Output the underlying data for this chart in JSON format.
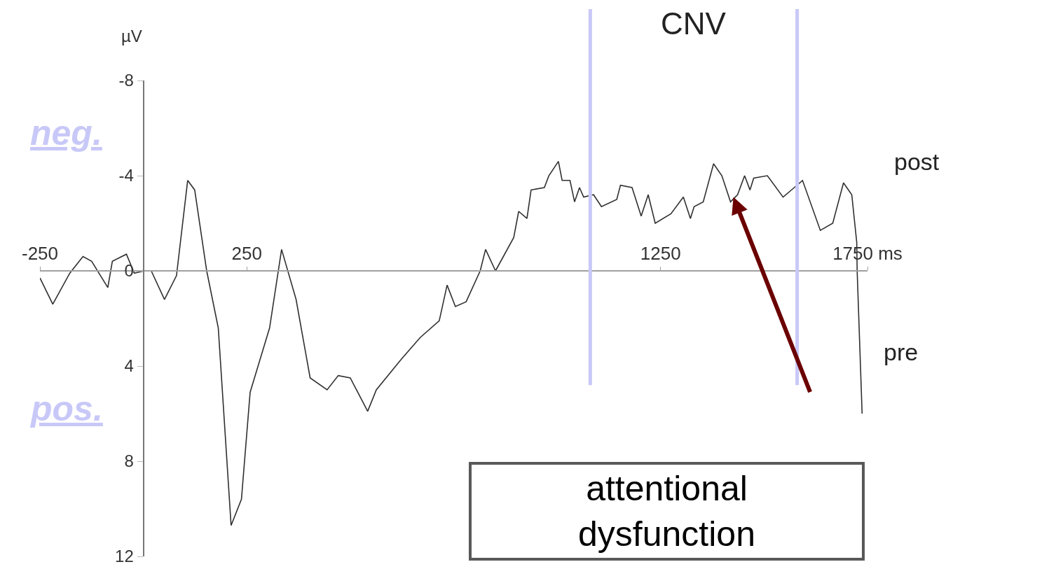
{
  "chart_data": {
    "type": "line",
    "ylabel": "µV",
    "x": [
      -250,
      -219,
      -178,
      -146,
      -125,
      -86,
      -75,
      -41,
      -22,
      2,
      19,
      51,
      80,
      107,
      124,
      153,
      181,
      212,
      237,
      258,
      305,
      334,
      369,
      403,
      444,
      471,
      500,
      542,
      563,
      624,
      669,
      715,
      734,
      754,
      780,
      814,
      827,
      851,
      895,
      907,
      927,
      937,
      969,
      980,
      1003,
      1012,
      1031,
      1042,
      1054,
      1064,
      1088,
      1107,
      1144,
      1153,
      1181,
      1203,
      1220,
      1237,
      1275,
      1305,
      1322,
      1331,
      1353,
      1378,
      1398,
      1419,
      1436,
      1453,
      1466,
      1475,
      1508,
      1546,
      1573,
      1593,
      1636,
      1666,
      1692,
      1712,
      1724,
      1725,
      1737
    ],
    "series": [
      {
        "color": "#303030",
        "values": [
          0.3,
          1.4,
          0.1,
          -0.6,
          -0.4,
          0.7,
          -0.4,
          -0.7,
          0.1,
          0,
          0,
          1.2,
          0.2,
          -3.8,
          -3.4,
          0,
          2.4,
          10.7,
          9.6,
          5.1,
          2.4,
          -0.9,
          1.2,
          4.5,
          5.0,
          4.4,
          4.5,
          5.9,
          5.0,
          3.7,
          2.8,
          2.1,
          0.6,
          1.5,
          1.3,
          0,
          -0.9,
          0,
          -1.4,
          -2.5,
          -2.2,
          -3.4,
          -3.5,
          -4.0,
          -4.6,
          -3.8,
          -3.8,
          -2.9,
          -3.5,
          -3.1,
          -3.2,
          -2.7,
          -3.0,
          -3.6,
          -3.5,
          -2.3,
          -3.2,
          -2.0,
          -2.4,
          -3.1,
          -2.2,
          -2.7,
          -2.9,
          -4.5,
          -4.0,
          -2.9,
          -3.2,
          -4.0,
          -3.4,
          -3.9,
          -4.0,
          -3.1,
          -3.5,
          -3.8,
          -1.7,
          -2.0,
          -3.7,
          -3.2,
          -1.2,
          0,
          6.0
        ]
      }
    ],
    "xlim": [
      -250,
      1750
    ],
    "xticks": [
      -250,
      250,
      1250,
      {
        "value": 1750,
        "label": "1750 ms"
      }
    ],
    "ylim": [
      12,
      -8
    ],
    "yticks": [
      -8,
      -4,
      0,
      4,
      8,
      12
    ],
    "ref_lines": [
      {
        "axis": "x",
        "value": 1080,
        "color": "#c8c8f8"
      },
      {
        "axis": "x",
        "value": 1580,
        "color": "#c8c8f8"
      }
    ],
    "annotations": [
      "CNV",
      "post",
      "pre",
      "neg.",
      "pos.",
      "attentional\ndysfunction"
    ],
    "line_style": "solid",
    "marker": "none"
  }
}
